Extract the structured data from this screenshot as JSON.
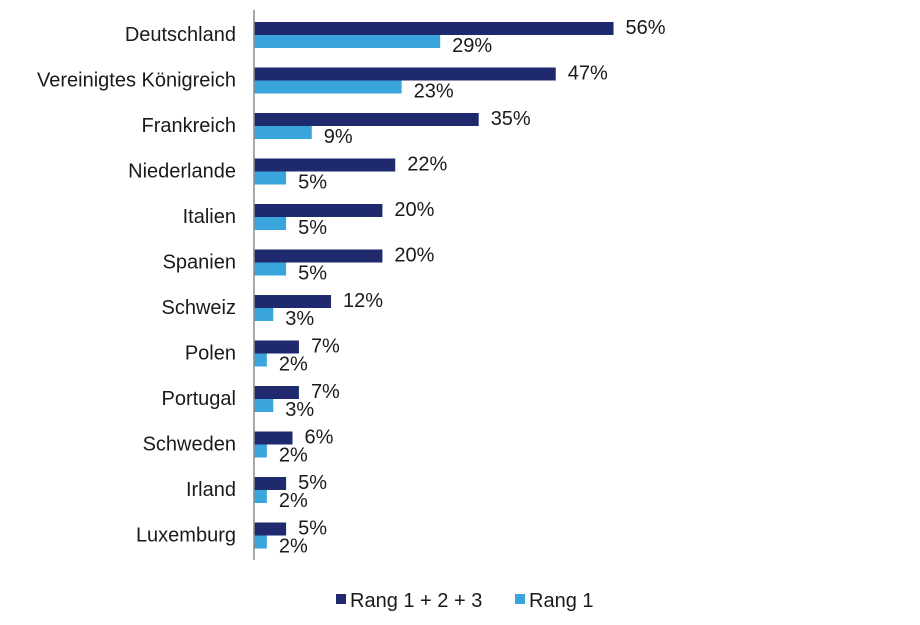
{
  "chart_data": {
    "type": "bar",
    "orientation": "horizontal",
    "categories": [
      "Deutschland",
      "Vereinigtes Königreich",
      "Frankreich",
      "Niederlande",
      "Italien",
      "Spanien",
      "Schweiz",
      "Polen",
      "Portugal",
      "Schweden",
      "Irland",
      "Luxemburg"
    ],
    "series": [
      {
        "name": "Rang 1 + 2 + 3",
        "color": "#1f2a6e",
        "values": [
          56,
          47,
          35,
          22,
          20,
          20,
          12,
          7,
          7,
          6,
          5,
          5
        ],
        "labels": [
          "56%",
          "47%",
          "35%",
          "22%",
          "20%",
          "20%",
          "12%",
          "7%",
          "7%",
          "6%",
          "5%",
          "5%"
        ]
      },
      {
        "name": "Rang 1",
        "color": "#3aa5dc",
        "values": [
          29,
          23,
          9,
          5,
          5,
          5,
          3,
          2,
          3,
          2,
          2,
          2
        ],
        "labels": [
          "29%",
          "23%",
          "9%",
          "5%",
          "5%",
          "5%",
          "3%",
          "2%",
          "3%",
          "2%",
          "2%",
          "2%"
        ]
      }
    ],
    "xlim": [
      0,
      60
    ],
    "value_unit": "%",
    "grid": false,
    "legend": "bottom",
    "axis_color": "#8c8c8c"
  }
}
